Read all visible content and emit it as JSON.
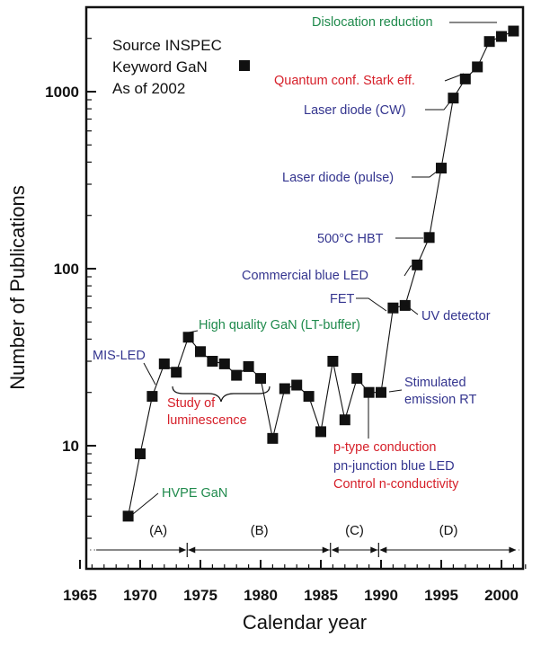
{
  "chart_data": {
    "type": "scatter",
    "line": true,
    "title": "",
    "xlabel": "Calendar year",
    "ylabel": "Number of Publications",
    "xlim": [
      1964.5,
      2002.5
    ],
    "ylim": [
      2.5,
      2800
    ],
    "yscale": "log",
    "x_ticks": [
      1965,
      1970,
      1975,
      1980,
      1985,
      1990,
      1995,
      2000
    ],
    "y_ticks": [
      10,
      100,
      1000
    ],
    "marker": "square",
    "colors": {
      "series": "#111111",
      "green": "#1f8a4c",
      "red": "#d6202a",
      "blue": "#34358f"
    },
    "series": [
      {
        "x": [
          1969,
          1970,
          1971,
          1972,
          1973,
          1974,
          1975,
          1976,
          1977,
          1978,
          1979,
          1980,
          1981,
          1982,
          1983,
          1984,
          1985,
          1986,
          1987,
          1988,
          1989,
          1990,
          1991,
          1992,
          1993,
          1994,
          1995,
          1996,
          1997,
          1998,
          1999,
          2000,
          2001
        ],
        "values": [
          4,
          9,
          19,
          29,
          26,
          41,
          34,
          30,
          29,
          25,
          28,
          24,
          11,
          21,
          22,
          19,
          12,
          30,
          14,
          24,
          20,
          20,
          60,
          62,
          105,
          150,
          370,
          920,
          1180,
          1380,
          1920,
          2050,
          2200
        ]
      }
    ],
    "legend": {
      "lines": [
        "Source INSPEC",
        "Keyword GaN",
        "As of 2002"
      ],
      "marker": "square"
    },
    "periods": [
      "(A)",
      "(B)",
      "(C)",
      "(D)"
    ],
    "annotations": [
      {
        "text": "Dislocation reduction",
        "color": "green"
      },
      {
        "text": "Quantum conf. Stark eff.",
        "color": "red"
      },
      {
        "text": "Laser diode (CW)",
        "color": "blue"
      },
      {
        "text": "Laser diode (pulse)",
        "color": "blue"
      },
      {
        "text": "500°C HBT",
        "color": "blue"
      },
      {
        "text": "Commercial blue LED",
        "color": "blue"
      },
      {
        "text": "FET",
        "color": "blue"
      },
      {
        "text": "UV detector",
        "color": "blue"
      },
      {
        "text": "High quality GaN (LT-buffer)",
        "color": "green"
      },
      {
        "text": "MIS-LED",
        "color": "blue"
      },
      {
        "text": "Study of",
        "color": "red"
      },
      {
        "text": "luminescence",
        "color": "red"
      },
      {
        "text": "Stimulated",
        "color": "blue"
      },
      {
        "text": "emission RT",
        "color": "blue"
      },
      {
        "text": "p-type conduction",
        "color": "red"
      },
      {
        "text": "pn-junction blue LED",
        "color": "blue"
      },
      {
        "text": "Control n-conductivity",
        "color": "red"
      },
      {
        "text": "HVPE GaN",
        "color": "green"
      }
    ]
  }
}
